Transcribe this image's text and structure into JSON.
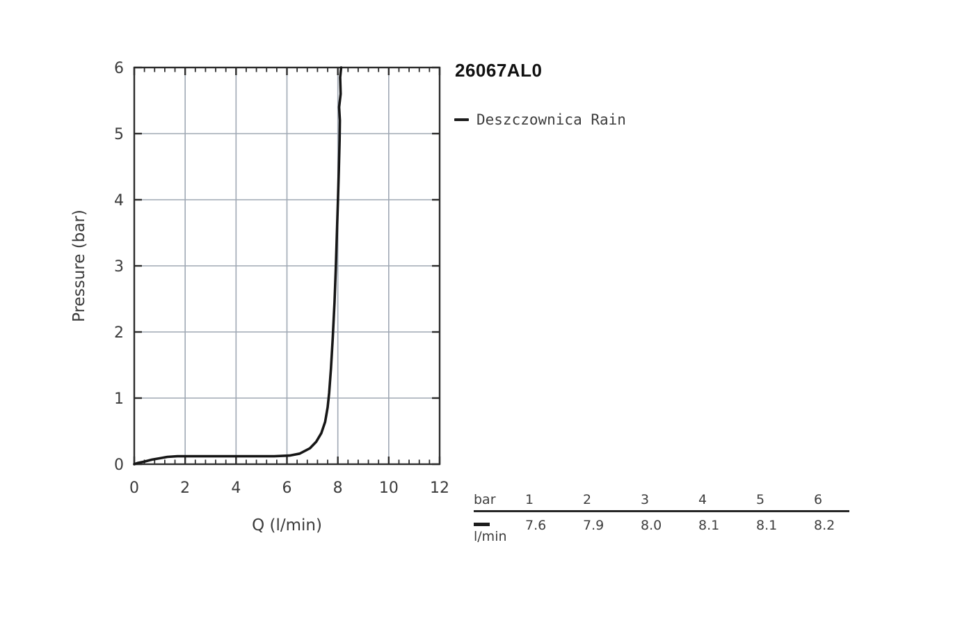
{
  "title": "26067AL0",
  "legend": {
    "marker": "line-dash",
    "label": "Deszczownica Rain"
  },
  "chart_data": {
    "type": "line",
    "title": "26067AL0",
    "xlabel": "Q (l/min)",
    "ylabel": "Pressure (bar)",
    "xlim": [
      0,
      12
    ],
    "ylim": [
      0,
      6
    ],
    "x_major_ticks": [
      0,
      2,
      4,
      6,
      8,
      10,
      12
    ],
    "y_major_ticks": [
      0,
      1,
      2,
      3,
      4,
      5,
      6
    ],
    "x_minor_step": 0.4,
    "grid": true,
    "legend_position": "top-right-outside",
    "colors": {
      "grid": "#9fa8b4",
      "axis": "#2b2b2b",
      "tick_label": "#3a3a3a",
      "series": "#161616"
    },
    "series": [
      {
        "name": "Deszczownica Rain",
        "color": "#161616",
        "points": [
          [
            0,
            0
          ],
          [
            0.15,
            0.02
          ],
          [
            0.4,
            0.04
          ],
          [
            0.7,
            0.07
          ],
          [
            1.0,
            0.09
          ],
          [
            1.3,
            0.11
          ],
          [
            1.7,
            0.12
          ],
          [
            2.5,
            0.12
          ],
          [
            3.5,
            0.12
          ],
          [
            4.5,
            0.12
          ],
          [
            5.5,
            0.12
          ],
          [
            6.1,
            0.13
          ],
          [
            6.5,
            0.16
          ],
          [
            6.9,
            0.24
          ],
          [
            7.15,
            0.34
          ],
          [
            7.35,
            0.47
          ],
          [
            7.5,
            0.64
          ],
          [
            7.6,
            0.86
          ],
          [
            7.66,
            1.08
          ],
          [
            7.73,
            1.45
          ],
          [
            7.8,
            1.9
          ],
          [
            7.87,
            2.45
          ],
          [
            7.92,
            2.95
          ],
          [
            7.96,
            3.45
          ],
          [
            8.0,
            3.95
          ],
          [
            8.04,
            4.45
          ],
          [
            8.07,
            4.9
          ],
          [
            8.08,
            5.2
          ],
          [
            8.05,
            5.4
          ],
          [
            8.11,
            5.6
          ],
          [
            8.09,
            5.85
          ],
          [
            8.13,
            6.0
          ]
        ]
      }
    ],
    "pressure_vs_flow": {
      "pressure_bar": [
        1,
        2,
        3,
        4,
        5,
        6
      ],
      "flow_l_min": [
        7.6,
        7.9,
        8.0,
        8.1,
        8.1,
        8.2
      ]
    }
  },
  "flow_table": {
    "header_label": "bar",
    "pressures": [
      "1",
      "2",
      "3",
      "4",
      "5",
      "6"
    ],
    "unit_label": "l/min",
    "flows": [
      "7.6",
      "7.9",
      "8.0",
      "8.1",
      "8.1",
      "8.2"
    ]
  }
}
